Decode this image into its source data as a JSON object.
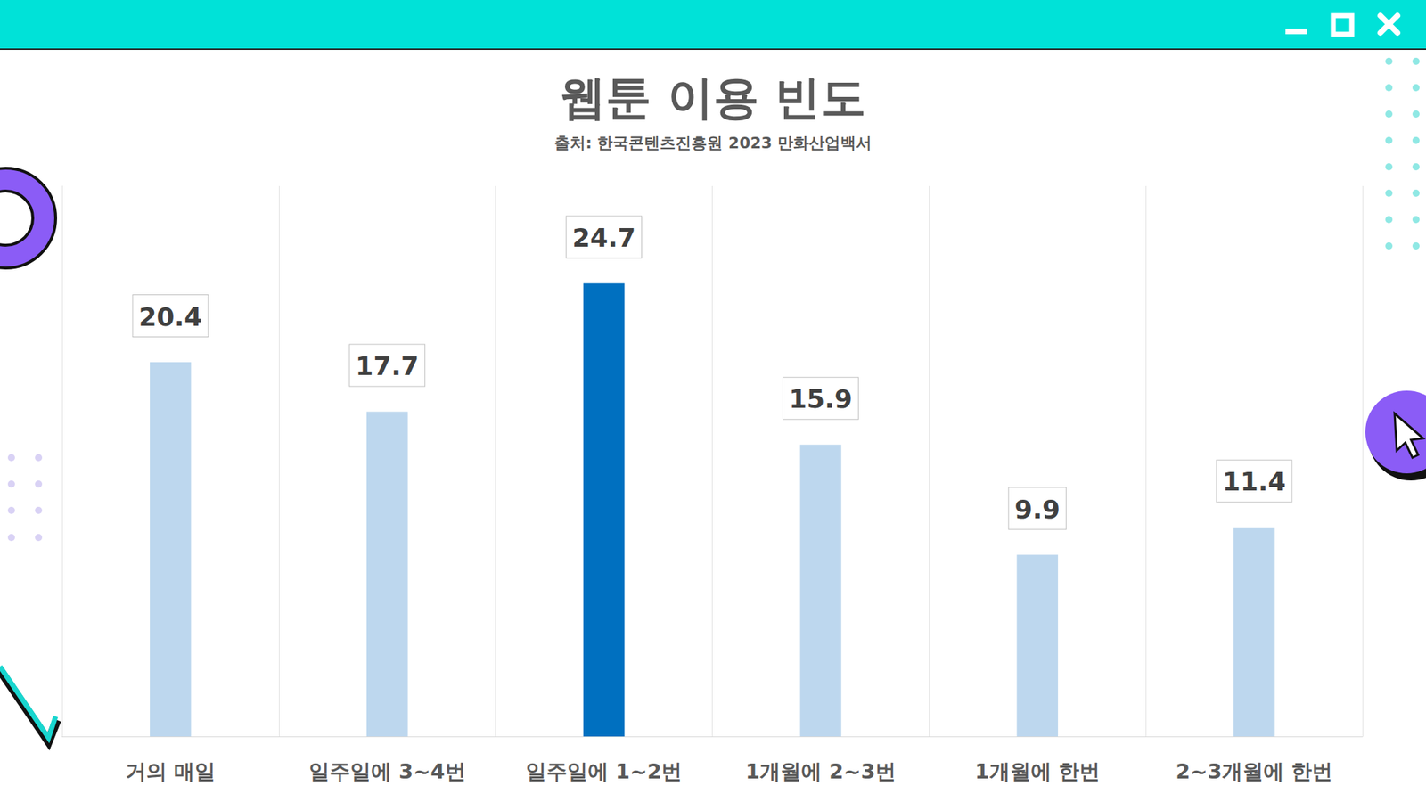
{
  "chart_data": {
    "type": "bar",
    "title": "웹툰 이용 빈도",
    "subtitle": "출처: 한국콘텐츠진흥원 2023 만화산업백서",
    "categories": [
      "거의 매일",
      "일주일에 3~4번",
      "일주일에 1~2번",
      "1개월에 2~3번",
      "1개월에 한번",
      "2~3개월에 한번"
    ],
    "values": [
      20.4,
      17.7,
      24.7,
      15.9,
      9.9,
      11.4
    ],
    "colors": [
      "#BDD7EE",
      "#BDD7EE",
      "#0070C0",
      "#BDD7EE",
      "#BDD7EE",
      "#BDD7EE"
    ],
    "ylim": [
      0,
      30
    ],
    "grid": true,
    "data_labels": true,
    "tick_labels": "x"
  }
}
